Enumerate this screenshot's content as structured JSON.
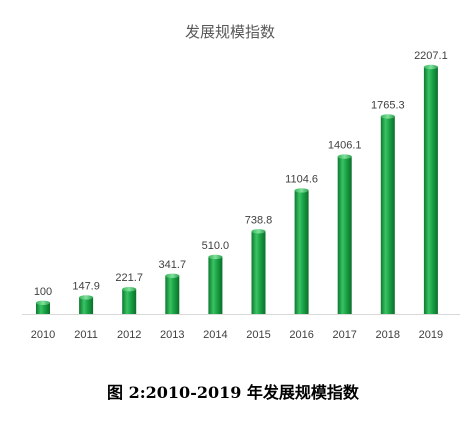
{
  "chart_data": {
    "type": "bar",
    "title": "发展规模指数",
    "categories": [
      "2010",
      "2011",
      "2012",
      "2013",
      "2014",
      "2015",
      "2016",
      "2017",
      "2018",
      "2019"
    ],
    "values": [
      100,
      147.9,
      221.7,
      341.7,
      510.0,
      738.8,
      1104.6,
      1406.1,
      1765.3,
      2207.1
    ],
    "value_labels": [
      "100",
      "147.9",
      "221.7",
      "341.7",
      "510.0",
      "738.8",
      "1104.6",
      "1406.1",
      "1765.3",
      "2207.1"
    ],
    "xlabel": "",
    "ylabel": "",
    "ylim": [
      0,
      2207.1
    ],
    "grid": false,
    "legend": "none",
    "bar_color": "#1ea84a"
  },
  "caption": "图 2:2010-2019 年发展规模指数"
}
